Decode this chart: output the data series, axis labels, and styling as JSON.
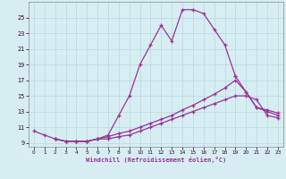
{
  "xlabel": "Windchill (Refroidissement éolien,°C)",
  "line_color": "#993399",
  "bg_color": "#d6eef2",
  "grid_color": "#b8d8df",
  "ylim": [
    8.5,
    27.0
  ],
  "xlim": [
    -0.5,
    23.5
  ],
  "yticks": [
    9,
    11,
    13,
    15,
    17,
    19,
    21,
    23,
    25
  ],
  "xticks": [
    0,
    1,
    2,
    3,
    4,
    5,
    6,
    7,
    8,
    9,
    10,
    11,
    12,
    13,
    14,
    15,
    16,
    17,
    18,
    19,
    20,
    21,
    22,
    23
  ],
  "spike_x": [
    0,
    1,
    2,
    3,
    4,
    5,
    6,
    7,
    8,
    9,
    10,
    11,
    12,
    13,
    14,
    15,
    16,
    17,
    18,
    19
  ],
  "spike_y": [
    10.5,
    10.0,
    9.5,
    9.2,
    9.2,
    9.2,
    9.5,
    10.0,
    12.5,
    15.0,
    19.0,
    21.5,
    24.0,
    22.0,
    26.0,
    26.0,
    25.5,
    23.5,
    21.5,
    17.5
  ],
  "fall_x": [
    19,
    20,
    21,
    22,
    23
  ],
  "fall_y": [
    17.5,
    15.5,
    13.5,
    13.0,
    12.5
  ],
  "mid_x": [
    2,
    3,
    4,
    5,
    6,
    7,
    8,
    9,
    10,
    11,
    12,
    13,
    14,
    15,
    16,
    17,
    18,
    19,
    20,
    21,
    22,
    23
  ],
  "mid_y": [
    9.5,
    9.2,
    9.2,
    9.2,
    9.5,
    9.8,
    10.2,
    10.5,
    11.0,
    11.5,
    12.0,
    12.5,
    13.2,
    13.8,
    14.5,
    15.2,
    16.0,
    17.0,
    15.5,
    13.5,
    13.2,
    12.8
  ],
  "bot_x": [
    2,
    3,
    4,
    5,
    6,
    7,
    8,
    9,
    10,
    11,
    12,
    13,
    14,
    15,
    16,
    17,
    18,
    19,
    20,
    21,
    22,
    23
  ],
  "bot_y": [
    9.5,
    9.2,
    9.2,
    9.2,
    9.5,
    9.5,
    9.8,
    10.0,
    10.5,
    11.0,
    11.5,
    12.0,
    12.5,
    13.0,
    13.5,
    14.0,
    14.5,
    15.0,
    15.0,
    14.5,
    12.5,
    12.2
  ]
}
